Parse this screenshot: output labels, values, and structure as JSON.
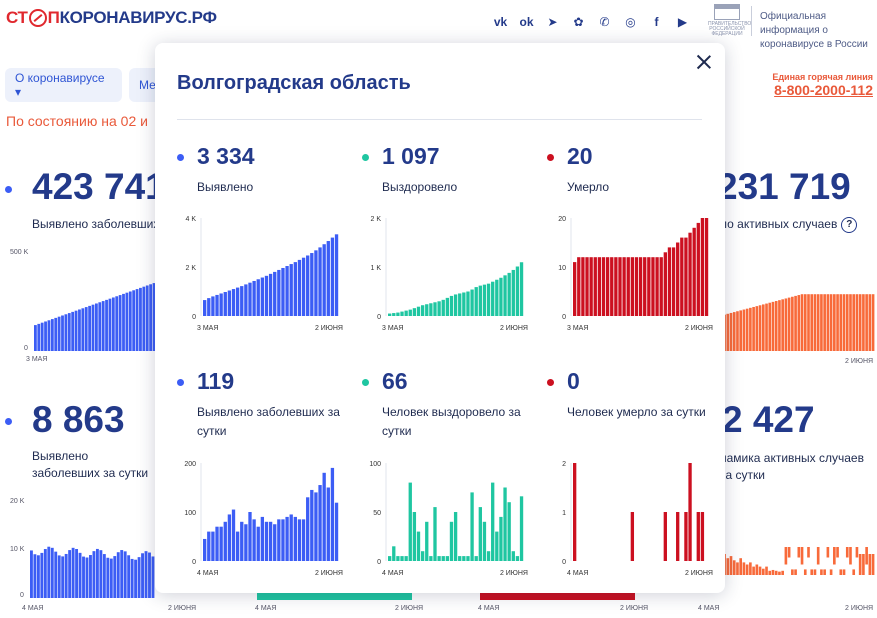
{
  "header": {
    "logo_part1": "СТ",
    "logo_part2": "П",
    "logo_part3": "КОРОНАВИРУС.РФ",
    "social_icons": [
      "vk-icon",
      "odnoklassniki-icon",
      "telegram-icon",
      "cloud-icon",
      "viber-icon",
      "instagram-icon",
      "facebook-icon",
      "youtube-icon"
    ],
    "social_glyphs": [
      "vk",
      "ok",
      "➤",
      "✿",
      "✆",
      "◎",
      "f",
      "▶"
    ],
    "gov_emblem_text": "ПРАВИТЕЛЬСТВО РОССИЙСКОЙ ФЕДЕРАЦИИ",
    "gov_text": "Официальная информация о коронавирусе в России"
  },
  "nav": {
    "about_label": "О коронавирусе ▾",
    "second_label": "Ме",
    "hotline_label": "Единая горячая линия",
    "hotline_number": "8-800-2000-112"
  },
  "background": {
    "as_of": "По состоянию на 02 и",
    "stat1_value": "423 741",
    "stat1_label": "Выявлено заболевших",
    "stat2_value": "231 719",
    "stat2_label": "Число активных случаев",
    "stat2_label_visible": "ло активных случаев",
    "stat3_value": "8 863",
    "stat3_label": "Выявлено заболевших за сутки",
    "stat4_value": "2 427",
    "stat4_label": "Динамика активных случаев за сутки",
    "stat4_label_visible": "намика активных случаев за сутки",
    "axis_500k": "500 K",
    "axis_0": "0",
    "axis_20k": "20 K",
    "axis_10k": "10 K",
    "date_3may": "3 МАЯ",
    "date_4may": "4 МАЯ",
    "date_2jun": "2 ИЮНЯ",
    "colors": {
      "blue": "#3c5df5",
      "teal": "#1fc6a1",
      "red": "#cc1020",
      "orange": "#f86a3a"
    }
  },
  "modal": {
    "title": "Волгоградская область",
    "cells": [
      {
        "value": "3 334",
        "label": "Выявлено",
        "color": "#3c5df5"
      },
      {
        "value": "1 097",
        "label": "Выздоровело",
        "color": "#1fc6a1"
      },
      {
        "value": "20",
        "label": "Умерло",
        "color": "#cc1020"
      },
      {
        "value": "119",
        "label": "Выявлено заболевших за сутки",
        "color": "#3c5df5"
      },
      {
        "value": "66",
        "label": "Человек выздоровело за сутки",
        "color": "#1fc6a1"
      },
      {
        "value": "0",
        "label": "Человек умерло за сутки",
        "color": "#cc1020"
      }
    ]
  },
  "chart_data": [
    {
      "type": "bar",
      "title": "Выявлено",
      "color": "#3c5df5",
      "x_start": "3 МАЯ",
      "x_end": "2 ИЮНЯ",
      "yticks": [
        {
          "v": 0,
          "label": "0"
        },
        {
          "v": 2000,
          "label": "2 K"
        },
        {
          "v": 4000,
          "label": "4 K"
        }
      ],
      "ylim": [
        0,
        4000
      ],
      "values": [
        650,
        730,
        800,
        860,
        920,
        980,
        1040,
        1100,
        1160,
        1220,
        1290,
        1360,
        1430,
        1500,
        1570,
        1640,
        1720,
        1800,
        1880,
        1960,
        2040,
        2120,
        2200,
        2290,
        2380,
        2470,
        2570,
        2680,
        2800,
        2930,
        3060,
        3200,
        3334
      ]
    },
    {
      "type": "bar",
      "title": "Выздоровело",
      "color": "#1fc6a1",
      "x_start": "3 МАЯ",
      "x_end": "2 ИЮНЯ",
      "yticks": [
        {
          "v": 0,
          "label": "0"
        },
        {
          "v": 1000,
          "label": "1 K"
        },
        {
          "v": 2000,
          "label": "2 K"
        }
      ],
      "ylim": [
        0,
        2000
      ],
      "values": [
        50,
        60,
        70,
        90,
        110,
        130,
        160,
        190,
        220,
        240,
        260,
        280,
        300,
        330,
        370,
        410,
        440,
        460,
        480,
        500,
        540,
        590,
        620,
        640,
        660,
        700,
        740,
        780,
        830,
        880,
        940,
        1010,
        1097
      ]
    },
    {
      "type": "bar",
      "title": "Умерло",
      "color": "#cc1020",
      "x_start": "3 МАЯ",
      "x_end": "2 ИЮНЯ",
      "yticks": [
        {
          "v": 0,
          "label": "0"
        },
        {
          "v": 10,
          "label": "10"
        },
        {
          "v": 20,
          "label": "20"
        }
      ],
      "ylim": [
        0,
        20
      ],
      "values": [
        11,
        12,
        12,
        12,
        12,
        12,
        12,
        12,
        12,
        12,
        12,
        12,
        12,
        12,
        12,
        12,
        12,
        12,
        12,
        12,
        12,
        12,
        13,
        14,
        14,
        15,
        16,
        16,
        17,
        18,
        19,
        20,
        20
      ]
    },
    {
      "type": "bar",
      "title": "Выявлено заболевших за сутки",
      "color": "#3c5df5",
      "x_start": "4 МАЯ",
      "x_end": "2 ИЮНЯ",
      "yticks": [
        {
          "v": 0,
          "label": "0"
        },
        {
          "v": 100,
          "label": "100"
        },
        {
          "v": 200,
          "label": "200"
        }
      ],
      "ylim": [
        0,
        200
      ],
      "values": [
        45,
        60,
        60,
        70,
        70,
        80,
        95,
        105,
        60,
        80,
        75,
        100,
        85,
        70,
        90,
        80,
        80,
        75,
        85,
        85,
        90,
        95,
        90,
        85,
        85,
        130,
        145,
        140,
        155,
        180,
        150,
        190,
        119
      ]
    },
    {
      "type": "bar",
      "title": "Человек выздоровело за сутки",
      "color": "#1fc6a1",
      "x_start": "4 МАЯ",
      "x_end": "2 ИЮНЯ",
      "yticks": [
        {
          "v": 0,
          "label": "0"
        },
        {
          "v": 50,
          "label": "50"
        },
        {
          "v": 100,
          "label": "100"
        }
      ],
      "ylim": [
        0,
        100
      ],
      "values": [
        5,
        15,
        5,
        5,
        5,
        80,
        50,
        30,
        10,
        40,
        5,
        55,
        5,
        5,
        5,
        40,
        50,
        5,
        5,
        5,
        70,
        5,
        55,
        40,
        10,
        80,
        30,
        45,
        75,
        60,
        10,
        5,
        66
      ]
    },
    {
      "type": "bar",
      "title": "Человек умерло за сутки",
      "color": "#cc1020",
      "x_start": "4 МАЯ",
      "x_end": "2 ИЮНЯ",
      "yticks": [
        {
          "v": 0,
          "label": "0"
        },
        {
          "v": 1,
          "label": "1"
        },
        {
          "v": 2,
          "label": "2"
        }
      ],
      "ylim": [
        0,
        2
      ],
      "values": [
        2,
        0,
        0,
        0,
        0,
        0,
        0,
        0,
        0,
        0,
        0,
        0,
        0,
        0,
        1,
        0,
        0,
        0,
        0,
        0,
        0,
        0,
        1,
        0,
        0,
        1,
        0,
        1,
        2,
        0,
        1,
        1,
        0
      ]
    }
  ]
}
